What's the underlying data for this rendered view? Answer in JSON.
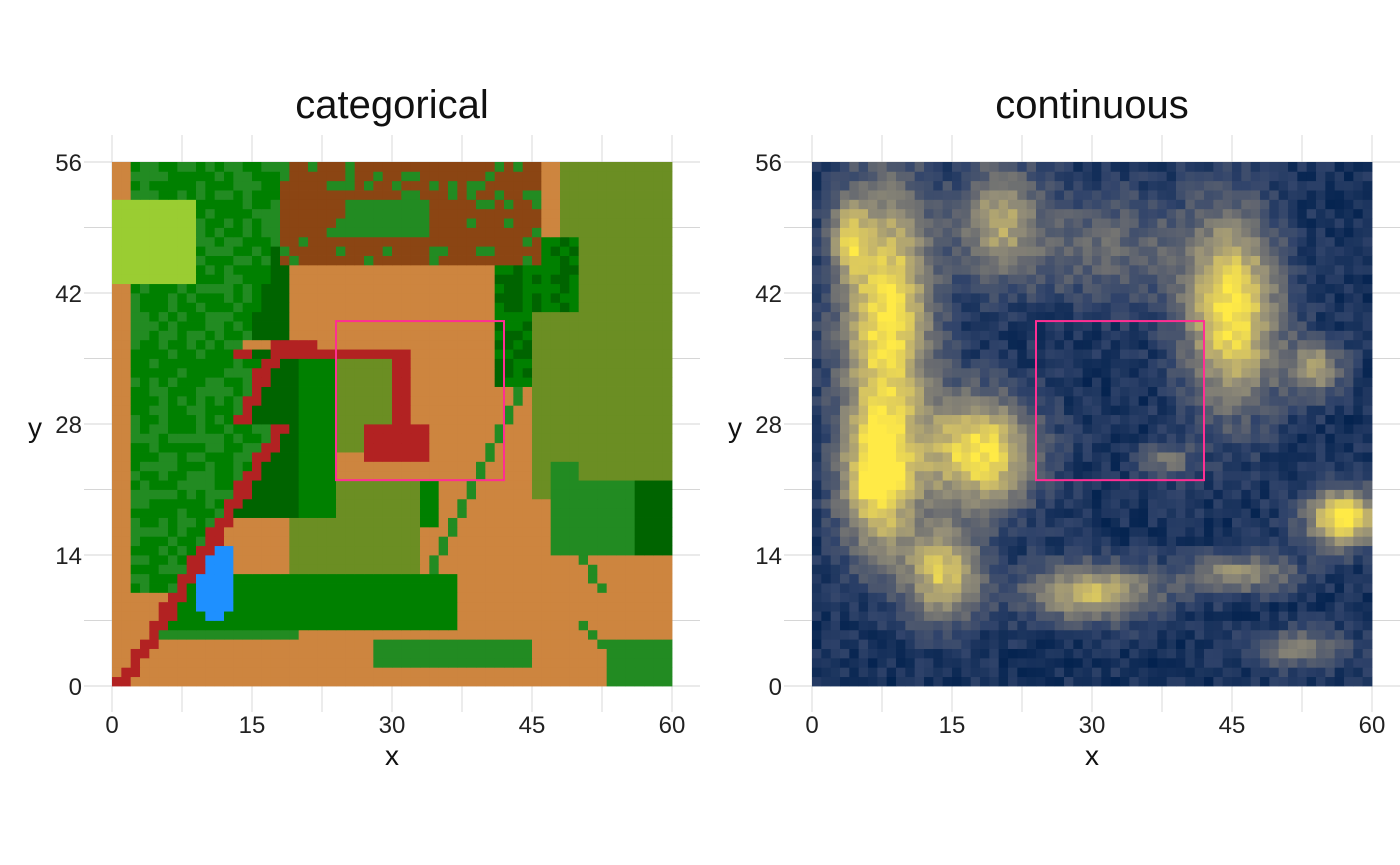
{
  "chart_data": [
    {
      "type": "heatmap",
      "title": "categorical",
      "xlabel": "x",
      "ylabel": "y",
      "xlim": [
        0,
        60
      ],
      "ylim": [
        0,
        56
      ],
      "xticks": [
        "0",
        "15",
        "30",
        "45",
        "60"
      ],
      "yticks": [
        "0",
        "14",
        "28",
        "42",
        "56"
      ],
      "grid": true,
      "highlight_box": {
        "x": [
          24,
          42
        ],
        "y": [
          22,
          39
        ],
        "color": "#ff2e93"
      },
      "colors": {
        "yellowgreen": "#9acd32",
        "green": "#008000",
        "darkgreen": "#006400",
        "forestgreen": "#228b22",
        "olivedrab": "#6b8e23",
        "peru": "#cd853f",
        "saddlebrown": "#8b4513",
        "firebrick": "#b22222",
        "dodgerblue": "#1e90ff"
      },
      "legend_placement": "none"
    },
    {
      "type": "heatmap",
      "title": "continuous",
      "xlabel": "x",
      "ylabel": "y",
      "xlim": [
        0,
        60
      ],
      "ylim": [
        0,
        56
      ],
      "xticks": [
        "0",
        "15",
        "30",
        "45",
        "60"
      ],
      "yticks": [
        "0",
        "14",
        "28",
        "42",
        "56"
      ],
      "grid": true,
      "highlight_box": {
        "x": [
          24,
          42
        ],
        "y": [
          22,
          39
        ],
        "color": "#ff2e93"
      },
      "colormap": [
        "#00204d",
        "#31446b",
        "#666970",
        "#958f78",
        "#cbba69",
        "#ffea46"
      ],
      "legend_placement": "none"
    }
  ]
}
